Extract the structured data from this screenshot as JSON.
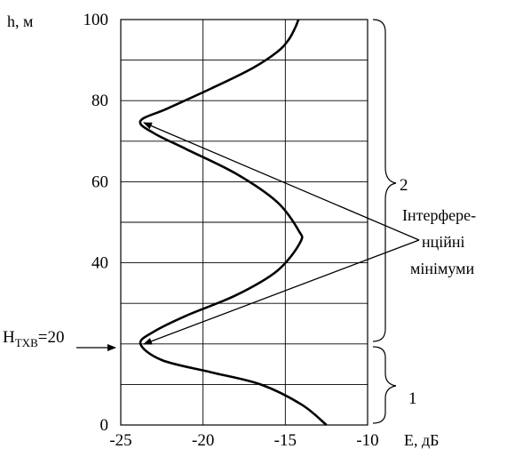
{
  "chart_data": {
    "type": "line",
    "xlabel": "E, дБ",
    "ylabel": "h, м",
    "xlim": [
      -25,
      -10
    ],
    "ylim": [
      0,
      100
    ],
    "x_ticks": [
      "-25",
      "-20",
      "-15",
      "-10"
    ],
    "y_ticks": [
      "0",
      "40",
      "60",
      "80",
      "100"
    ],
    "grid": true,
    "series": [
      {
        "x": [
          -12.5,
          -14.0,
          -16.5,
          -19.5,
          -22.5,
          -23.8,
          -23.0,
          -21.0,
          -18.0,
          -15.5,
          -14.1,
          -14.2,
          -15.5,
          -18.0,
          -21.0,
          -23.0,
          -23.8,
          -22.2,
          -19.5,
          -17.0,
          -15.5,
          -14.8,
          -14.4,
          -14.2
        ],
        "y": [
          0,
          5,
          10,
          13,
          16,
          20,
          23,
          27,
          32,
          38,
          45,
          48,
          55,
          62,
          68,
          72,
          75,
          78,
          83,
          88,
          92,
          95,
          98,
          100
        ]
      }
    ],
    "annotations": {
      "h_txb_label": "H",
      "h_txb_sub": "TXB",
      "h_txb_value": "=20",
      "minima_label_1": "Інтерфере-",
      "minima_label_2": "нційні",
      "minima_label_3": "мінімуми",
      "brace_upper_label": "2",
      "brace_lower_label": "1"
    }
  }
}
